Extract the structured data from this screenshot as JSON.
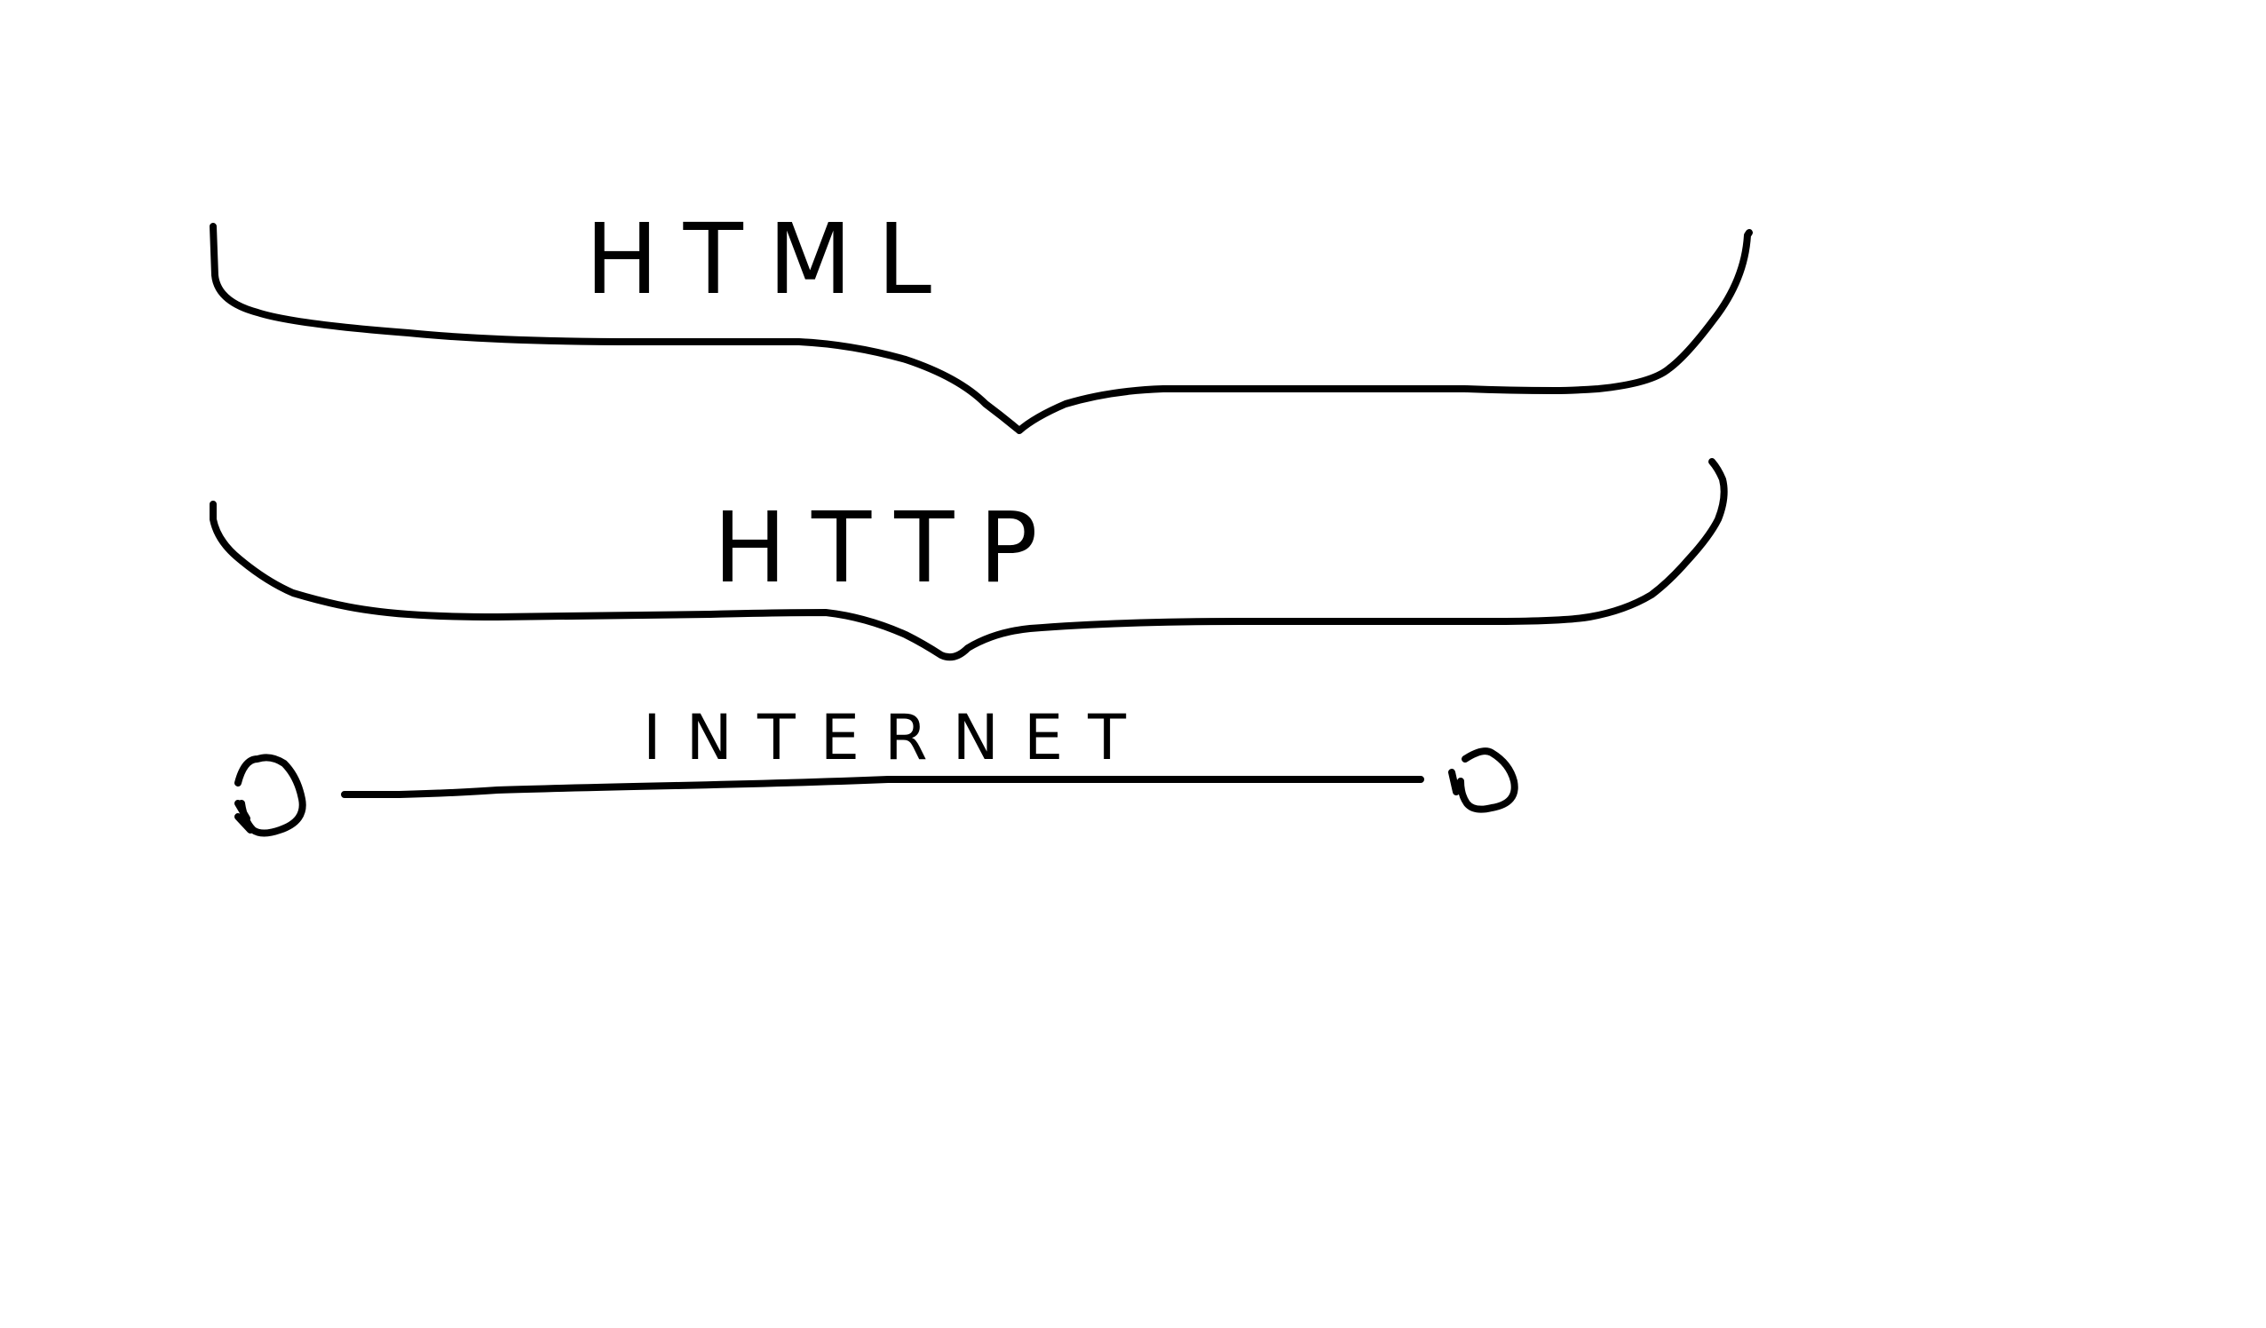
{
  "diagram": {
    "layers": [
      {
        "id": "html",
        "label": "HTML"
      },
      {
        "id": "http",
        "label": "HTTP"
      },
      {
        "id": "internet",
        "label": "INTERNET"
      }
    ],
    "ink_color": "#000000",
    "background": "#ffffff"
  }
}
